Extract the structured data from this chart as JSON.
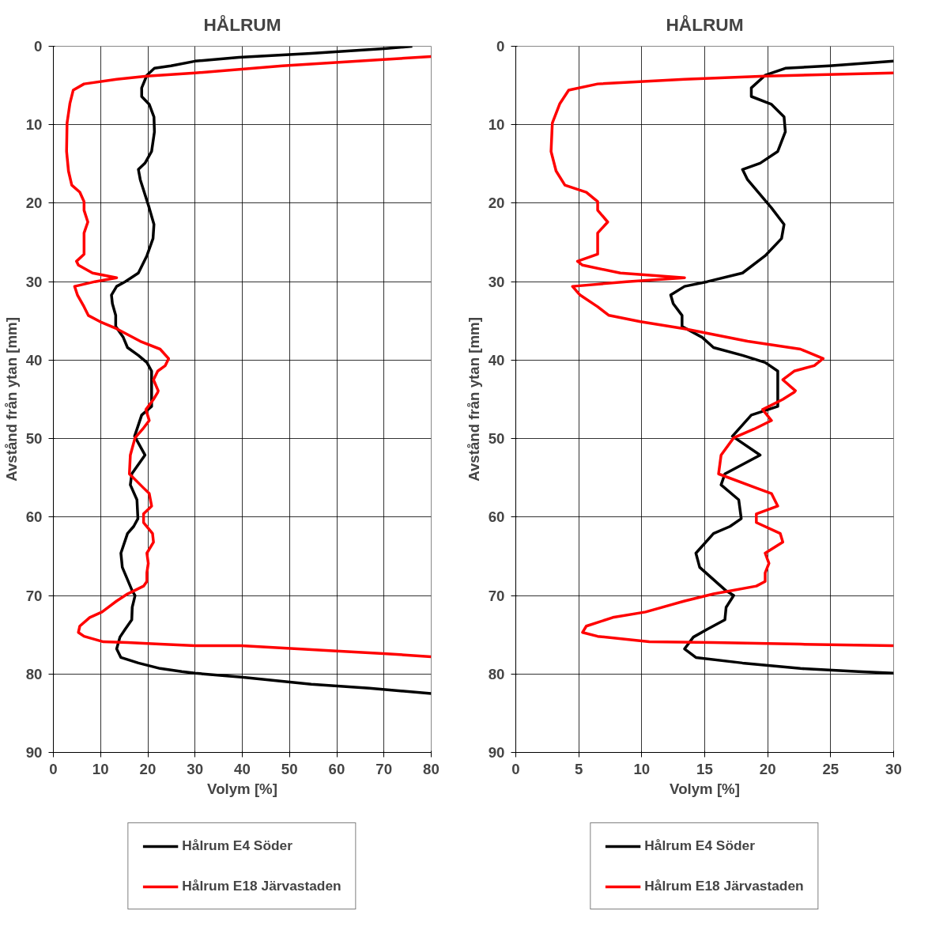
{
  "chart_data": [
    {
      "type": "line",
      "title": "HÅLRUM",
      "xlabel": "Volym [%]",
      "ylabel": "Avstånd från ytan [mm]",
      "xlim": [
        0,
        80
      ],
      "xticks": [
        0,
        10,
        20,
        30,
        40,
        50,
        60,
        70,
        80
      ],
      "ylim": [
        90,
        0
      ],
      "yticks": [
        0,
        10,
        20,
        30,
        40,
        50,
        60,
        70,
        80,
        90
      ],
      "grid": true,
      "legend": "bottom",
      "line_style": "solid",
      "marker": "none",
      "series": [
        {
          "name": "Hålrum E4 Söder",
          "color": "#000000",
          "x": [
            76,
            70,
            54.6,
            39.3,
            30,
            24.9,
            21.4,
            19.8,
            18.7,
            18.7,
            20.3,
            21.3,
            21.4,
            20.8,
            19.4,
            18.0,
            18.4,
            20.3,
            21.3,
            21.1,
            19.8,
            18.0,
            15.2,
            13.4,
            12.3,
            12.5,
            13.2,
            13.2,
            14.8,
            15.7,
            18.0,
            19.8,
            20.8,
            20.8,
            20.8,
            18.7,
            17.2,
            19.4,
            16.6,
            16.3,
            17.7,
            17.9,
            17.0,
            15.7,
            14.3,
            14.6,
            16.7,
            17.3,
            16.7,
            16.6,
            15.2,
            14.1,
            13.4,
            14.3,
            18.0,
            22.6,
            27.2,
            30,
            39.8,
            54.6,
            66.9,
            80
          ],
          "values": [
            0,
            0.3,
            0.9,
            1.4,
            1.9,
            2.5,
            2.8,
            3.7,
            5.3,
            6.4,
            7.4,
            9.0,
            10.9,
            13.4,
            14.9,
            15.7,
            17.0,
            20.6,
            22.7,
            24.5,
            26.7,
            28.9,
            30.0,
            30.6,
            31.7,
            32.8,
            34.3,
            35.7,
            37.1,
            38.4,
            39.4,
            40.3,
            41.4,
            43.9,
            45.9,
            47.0,
            49.7,
            52.1,
            54.5,
            55.9,
            57.8,
            60.2,
            61.2,
            62.1,
            64.6,
            66.4,
            69.4,
            70.0,
            71.5,
            73.1,
            74.3,
            75.3,
            76.8,
            77.9,
            78.6,
            79.3,
            79.7,
            79.9,
            80.4,
            81.3,
            81.8,
            82.5
          ]
        },
        {
          "name": "Hålrum E18 Järvastaden",
          "color": "#ff0000",
          "x": [
            80,
            69.9,
            48.5,
            30,
            19.8,
            13.4,
            6.5,
            4.2,
            3.5,
            2.9,
            2.8,
            3.2,
            3.9,
            5.6,
            6.5,
            6.5,
            7.3,
            6.5,
            6.5,
            4.9,
            5.3,
            8.3,
            13.4,
            8.8,
            4.5,
            5.1,
            6.5,
            7.4,
            9.9,
            13.4,
            18.4,
            22.6,
            24.4,
            23.7,
            22.1,
            21.2,
            22.2,
            22.1,
            21.2,
            19.6,
            20.3,
            18.9,
            17.3,
            16.3,
            16.1,
            19.1,
            20.3,
            20.8,
            19.1,
            19.1,
            21.0,
            21.2,
            19.8,
            20.1,
            19.8,
            19.8,
            19.1,
            15.7,
            13.4,
            10.3,
            7.7,
            5.6,
            5.3,
            6.5,
            10.6,
            15.7,
            22.6,
            30,
            39.8,
            57.7,
            69.9,
            80
          ],
          "values": [
            1.3,
            1.7,
            2.5,
            3.4,
            3.8,
            4.2,
            4.8,
            5.6,
            7.3,
            9.8,
            13.4,
            15.9,
            17.7,
            18.6,
            19.8,
            20.9,
            22.4,
            23.8,
            26.5,
            27.4,
            27.9,
            28.9,
            29.5,
            30.0,
            30.6,
            31.7,
            33.2,
            34.3,
            35.1,
            36.0,
            37.6,
            38.6,
            39.8,
            40.7,
            41.4,
            42.5,
            43.9,
            44.1,
            45.0,
            46.3,
            47.7,
            48.8,
            49.9,
            52.1,
            54.5,
            56.3,
            57.0,
            58.6,
            59.6,
            60.7,
            62.1,
            63.2,
            64.6,
            65.9,
            67.1,
            68.2,
            68.8,
            69.8,
            70.7,
            72.1,
            72.8,
            73.9,
            74.7,
            75.2,
            75.9,
            76.0,
            76.2,
            76.4,
            76.4,
            77.0,
            77.4,
            77.8
          ]
        }
      ]
    },
    {
      "type": "line",
      "title": "HÅLRUM",
      "xlabel": "Volym [%]",
      "ylabel": "Avstånd från ytan [mm]",
      "xlim": [
        0,
        30
      ],
      "xticks": [
        0,
        5,
        10,
        15,
        20,
        25,
        30
      ],
      "ylim": [
        90,
        0
      ],
      "yticks": [
        0,
        10,
        20,
        30,
        40,
        50,
        60,
        70,
        80,
        90
      ],
      "grid": true,
      "legend": "bottom",
      "line_style": "solid",
      "marker": "none",
      "series": [
        {
          "name": "Hålrum E4 Söder",
          "color": "#000000",
          "x": [
            30,
            24.9,
            21.4,
            19.8,
            18.7,
            18.7,
            20.3,
            21.3,
            21.4,
            20.8,
            19.4,
            18.0,
            18.4,
            20.3,
            21.3,
            21.1,
            19.8,
            18.0,
            15.2,
            13.4,
            12.3,
            12.5,
            13.2,
            13.2,
            14.8,
            15.7,
            18.0,
            19.8,
            20.8,
            20.8,
            20.8,
            18.7,
            17.2,
            19.4,
            16.6,
            16.3,
            17.7,
            17.9,
            17.0,
            15.7,
            14.3,
            14.6,
            16.7,
            17.3,
            16.7,
            16.6,
            15.2,
            14.1,
            13.4,
            14.3,
            18.0,
            22.6,
            27.2,
            30
          ],
          "values": [
            1.9,
            2.5,
            2.8,
            3.7,
            5.3,
            6.4,
            7.4,
            9.0,
            10.9,
            13.4,
            14.9,
            15.7,
            17.0,
            20.6,
            22.7,
            24.5,
            26.7,
            28.9,
            30.0,
            30.6,
            31.7,
            32.8,
            34.3,
            35.7,
            37.1,
            38.4,
            39.4,
            40.3,
            41.4,
            43.9,
            45.9,
            47.0,
            49.7,
            52.1,
            54.5,
            55.9,
            57.8,
            60.2,
            61.2,
            62.1,
            64.6,
            66.4,
            69.4,
            70.0,
            71.5,
            73.1,
            74.3,
            75.3,
            76.8,
            77.9,
            78.6,
            79.3,
            79.7,
            79.9
          ]
        },
        {
          "name": "Hålrum E18 Järvastaden",
          "color": "#ff0000",
          "x": [
            30,
            19.8,
            13.4,
            6.5,
            4.2,
            3.5,
            2.9,
            2.8,
            3.2,
            3.9,
            5.6,
            6.5,
            6.5,
            7.3,
            6.5,
            6.5,
            4.9,
            5.3,
            8.3,
            13.4,
            8.8,
            4.5,
            5.1,
            6.5,
            7.4,
            9.9,
            13.4,
            18.4,
            22.6,
            24.4,
            23.7,
            22.1,
            21.2,
            22.2,
            22.1,
            21.2,
            19.6,
            20.3,
            18.9,
            17.3,
            16.3,
            16.1,
            19.1,
            20.3,
            20.8,
            19.1,
            19.1,
            21.0,
            21.2,
            19.8,
            20.1,
            19.8,
            19.8,
            19.1,
            15.7,
            13.4,
            10.3,
            7.7,
            5.6,
            5.3,
            6.5,
            10.6,
            15.7,
            22.6,
            30
          ],
          "values": [
            3.4,
            3.8,
            4.2,
            4.8,
            5.6,
            7.3,
            9.8,
            13.4,
            15.9,
            17.7,
            18.6,
            19.8,
            20.9,
            22.4,
            23.8,
            26.5,
            27.4,
            27.9,
            28.9,
            29.5,
            30.0,
            30.6,
            31.7,
            33.2,
            34.3,
            35.1,
            36.0,
            37.6,
            38.6,
            39.8,
            40.7,
            41.4,
            42.5,
            43.9,
            44.1,
            45.0,
            46.3,
            47.7,
            48.8,
            49.9,
            52.1,
            54.5,
            56.3,
            57.0,
            58.6,
            59.6,
            60.7,
            62.1,
            63.2,
            64.6,
            65.9,
            67.1,
            68.2,
            68.8,
            69.8,
            70.7,
            72.1,
            72.8,
            73.9,
            74.7,
            75.2,
            75.9,
            76.0,
            76.2,
            76.4
          ]
        }
      ]
    }
  ]
}
